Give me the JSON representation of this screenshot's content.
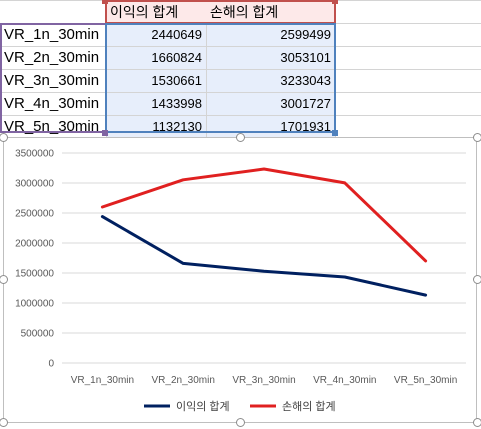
{
  "table": {
    "headers": [
      "이익의 합계",
      "손해의 합계"
    ],
    "rows": [
      {
        "label": "VR_1n_30min",
        "profit": "2440649",
        "loss": "2599499"
      },
      {
        "label": "VR_2n_30min",
        "profit": "1660824",
        "loss": "3053101"
      },
      {
        "label": "VR_3n_30min",
        "profit": "1530661",
        "loss": "3233043"
      },
      {
        "label": "VR_4n_30min",
        "profit": "1433998",
        "loss": "3001727"
      },
      {
        "label": "VR_5n_30min",
        "profit": "1132130",
        "loss": "1701931"
      }
    ]
  },
  "chart_data": {
    "type": "line",
    "categories": [
      "VR_1n_30min",
      "VR_2n_30min",
      "VR_3n_30min",
      "VR_4n_30min",
      "VR_5n_30min"
    ],
    "series": [
      {
        "name": "이익의 합계",
        "color": "#002060",
        "values": [
          2440649,
          1660824,
          1530661,
          1433998,
          1132130
        ]
      },
      {
        "name": "손해의 합계",
        "color": "#e02020",
        "values": [
          2599499,
          3053101,
          3233043,
          3001727,
          1701931
        ]
      }
    ],
    "ylim": [
      0,
      3500000
    ],
    "yticks": [
      "0",
      "500000",
      "1000000",
      "1500000",
      "2000000",
      "2500000",
      "3000000",
      "3500000"
    ],
    "grid": true,
    "legend": "bottom"
  }
}
